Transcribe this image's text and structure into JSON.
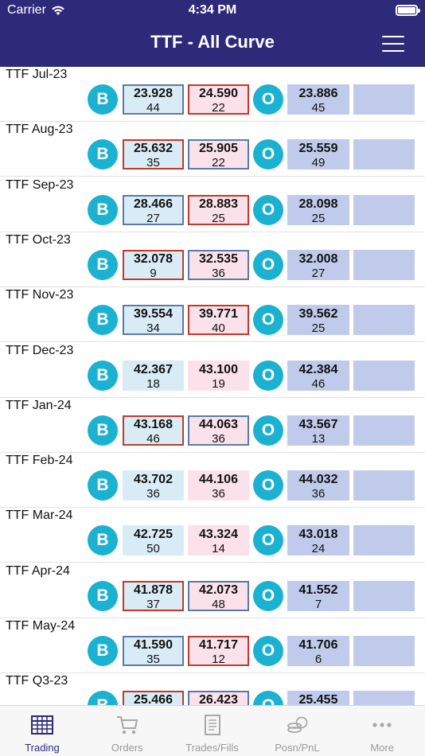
{
  "status": {
    "carrier": "Carrier",
    "time": "4:34 PM"
  },
  "header": {
    "title": "TTF - All Curve"
  },
  "buy_label": "B",
  "other_label": "O",
  "rows": [
    {
      "name": "TTF Jul-23",
      "bid": "23.928",
      "bid_qty": "44",
      "ask": "24.590",
      "ask_qty": "22",
      "last": "23.886",
      "last_qty": "45"
    },
    {
      "name": "TTF Aug-23",
      "bid": "25.632",
      "bid_qty": "35",
      "ask": "25.905",
      "ask_qty": "22",
      "last": "25.559",
      "last_qty": "49"
    },
    {
      "name": "TTF Sep-23",
      "bid": "28.466",
      "bid_qty": "27",
      "ask": "28.883",
      "ask_qty": "25",
      "last": "28.098",
      "last_qty": "25"
    },
    {
      "name": "TTF Oct-23",
      "bid": "32.078",
      "bid_qty": "9",
      "ask": "32.535",
      "ask_qty": "36",
      "last": "32.008",
      "last_qty": "27"
    },
    {
      "name": "TTF Nov-23",
      "bid": "39.554",
      "bid_qty": "34",
      "ask": "39.771",
      "ask_qty": "40",
      "last": "39.562",
      "last_qty": "25"
    },
    {
      "name": "TTF Dec-23",
      "bid": "42.367",
      "bid_qty": "18",
      "ask": "43.100",
      "ask_qty": "19",
      "last": "42.384",
      "last_qty": "46"
    },
    {
      "name": "TTF Jan-24",
      "bid": "43.168",
      "bid_qty": "46",
      "ask": "44.063",
      "ask_qty": "36",
      "last": "43.567",
      "last_qty": "13"
    },
    {
      "name": "TTF Feb-24",
      "bid": "43.702",
      "bid_qty": "36",
      "ask": "44.106",
      "ask_qty": "36",
      "last": "44.032",
      "last_qty": "36"
    },
    {
      "name": "TTF Mar-24",
      "bid": "42.725",
      "bid_qty": "50",
      "ask": "43.324",
      "ask_qty": "14",
      "last": "43.018",
      "last_qty": "24"
    },
    {
      "name": "TTF Apr-24",
      "bid": "41.878",
      "bid_qty": "37",
      "ask": "42.073",
      "ask_qty": "48",
      "last": "41.552",
      "last_qty": "7"
    },
    {
      "name": "TTF May-24",
      "bid": "41.590",
      "bid_qty": "35",
      "ask": "41.717",
      "ask_qty": "12",
      "last": "41.706",
      "last_qty": "6"
    },
    {
      "name": "TTF Q3-23",
      "bid": "25.466",
      "bid_qty": "",
      "ask": "26.423",
      "ask_qty": "",
      "last": "25.455",
      "last_qty": ""
    }
  ],
  "tabs": [
    {
      "label": "Trading",
      "icon": "trading-grid-icon",
      "active": true
    },
    {
      "label": "Orders",
      "icon": "cart-icon",
      "active": false
    },
    {
      "label": "Trades/Fills",
      "icon": "document-icon",
      "active": false
    },
    {
      "label": "Posn/PnL",
      "icon": "coins-icon",
      "active": false
    },
    {
      "label": "More",
      "icon": "more-dots-icon",
      "active": false
    }
  ],
  "colors": {
    "header": "#2e2a7a",
    "button": "#1bb1d1",
    "bid_bg": "#d9ecf6",
    "ask_bg": "#fbe1ea",
    "last_bg": "#c0cbec",
    "border_red": "#c0392b",
    "border_blue": "#5a7aa8",
    "active_tab": "#2e2a7a"
  }
}
